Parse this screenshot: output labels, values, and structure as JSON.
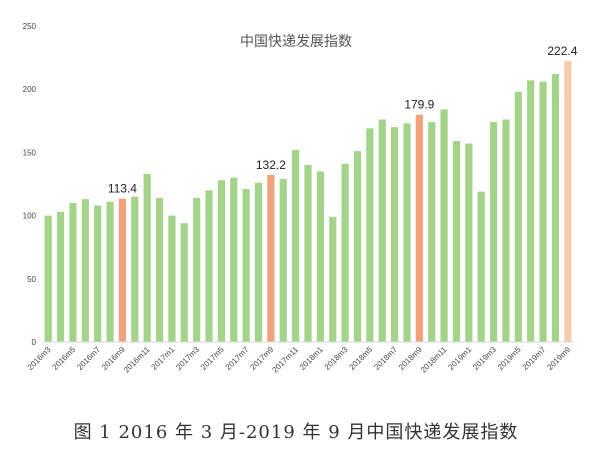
{
  "caption": "图 1 2016 年 3 月-2019 年 9 月中国快递发展指数",
  "chart_data": {
    "type": "bar",
    "title": "中国快递发展指数",
    "xlabel": "",
    "ylabel": "",
    "ylim": [
      0,
      250
    ],
    "yticks": [
      0,
      50,
      100,
      150,
      200,
      250
    ],
    "grid": false,
    "legend": "none",
    "categories": [
      "2016m3",
      "2016m4",
      "2016m5",
      "2016m6",
      "2016m7",
      "2016m8",
      "2016m9",
      "2016m10",
      "2016m11",
      "2016m12",
      "2017m1",
      "2017m2",
      "2017m3",
      "2017m4",
      "2017m5",
      "2017m6",
      "2017m7",
      "2017m8",
      "2017m9",
      "2017m10",
      "2017m11",
      "2017m12",
      "2018m1",
      "2018m2",
      "2018m3",
      "2018m4",
      "2018m5",
      "2018m6",
      "2018m7",
      "2018m8",
      "2018m9",
      "2018m10",
      "2018m11",
      "2018m12",
      "2019m1",
      "2019m2",
      "2019m3",
      "2019m4",
      "2019m5",
      "2019m6",
      "2019m7",
      "2019m8",
      "2019m9"
    ],
    "values": [
      100,
      103,
      110,
      113,
      108,
      111,
      113.4,
      115,
      133,
      114,
      100,
      94,
      114,
      120,
      128,
      130,
      121,
      126,
      132.2,
      129,
      152,
      140,
      135,
      99,
      141,
      151,
      169,
      176,
      170,
      173,
      179.9,
      174,
      184,
      159,
      157,
      119,
      174,
      176,
      198,
      207,
      206,
      212,
      222.4
    ],
    "x_tick_labels": [
      "2016m3",
      "2016m5",
      "2016m7",
      "2016m9",
      "2016m11",
      "2017m1",
      "2017m3",
      "2017m5",
      "2017m7",
      "2017m9",
      "2017m11",
      "2018m1",
      "2018m3",
      "2018m5",
      "2018m7",
      "2018m9",
      "2018m11",
      "2019m1",
      "2019m3",
      "2019m5",
      "2019m7",
      "2019m9"
    ],
    "data_labels": [
      {
        "category": "2016m9",
        "text": "113.4"
      },
      {
        "category": "2017m9",
        "text": "132.2"
      },
      {
        "category": "2018m9",
        "text": "179.9"
      },
      {
        "category": "2019m9",
        "text": "222.4"
      }
    ],
    "colors": {
      "default": "#a3d48a",
      "highlight": "#f2a27a",
      "latest": "#f6ccab",
      "axis": "#d9d9d9"
    },
    "highlight_categories": [
      "2016m9",
      "2017m9",
      "2018m9"
    ],
    "latest_category": "2019m9"
  }
}
